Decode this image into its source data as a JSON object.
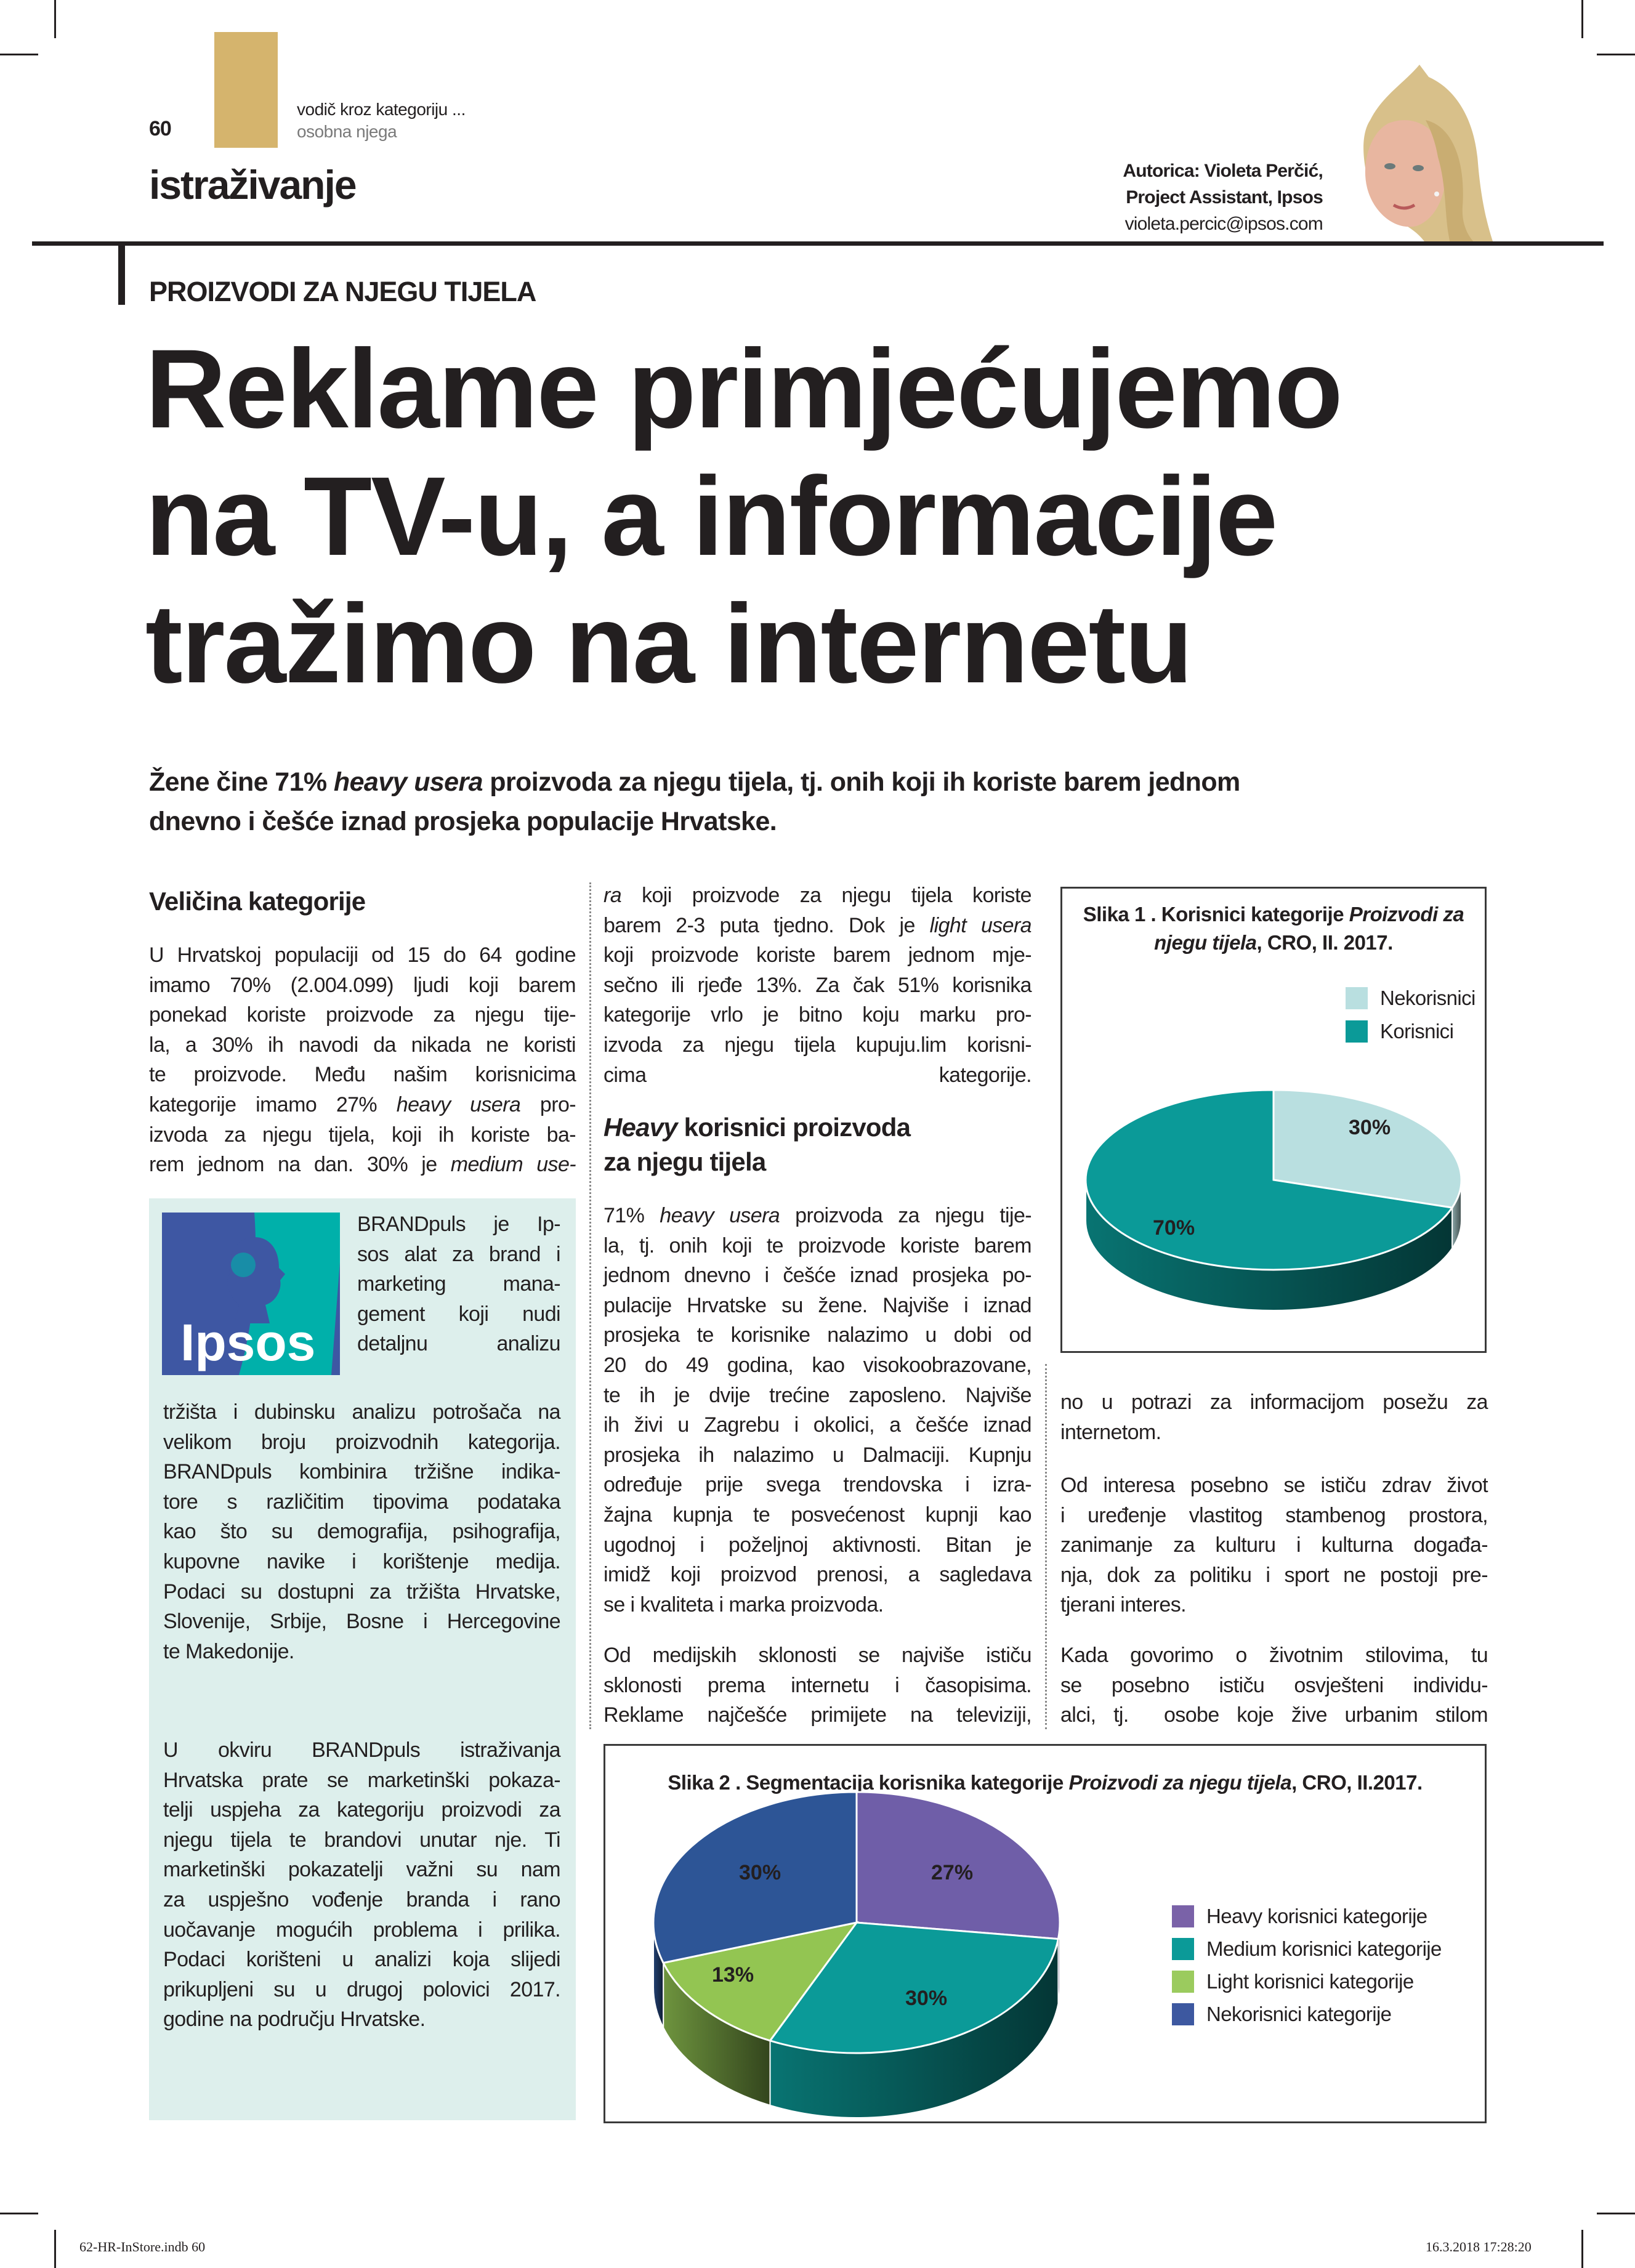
{
  "header": {
    "page_number": "60",
    "kicker": "vodič kroz kategoriju ...",
    "kicker_sub": "osobna njega",
    "section": "istraživanje",
    "author_line1": "Autorica: Violeta Perčić,",
    "author_line2": "Project Assistant, Ipsos",
    "author_email": "violeta.percic@ipsos.com"
  },
  "article": {
    "rubric": "PROIZVODI ZA NJEGU TIJELA",
    "headline": [
      "Reklame primjećujemo",
      "na TV-u, a informacije",
      "tražimo na internetu"
    ],
    "lead": {
      "l1_a": "Žene čine 71% ",
      "l1_i": "heavy usera",
      "l1_b": " proizvoda za njegu tijela, tj. onih koji ih koriste barem jednom",
      "l2": "dnevno i češće iznad prosjeka populacije Hrvatske."
    },
    "col1": {
      "heading": "Veličina kategorije",
      "p1": [
        "U Hrvatskoj populaciji od 15 do 64 godine",
        "imamo 70% (2.004.099) ljudi koji barem",
        "ponekad koriste proizvode za njegu tije-",
        "la, a 30% ih navodi da nikada ne koristi",
        "te proizvode. Među našim korisnicima",
        [
          "kategorije imamo 27% ",
          {
            "i": "heavy usera"
          },
          " pro-"
        ],
        "izvoda za njegu tijela, koji ih koriste ba-",
        [
          "rem jednom na dan. 30% je ",
          {
            "i": "medium use-"
          }
        ]
      ]
    },
    "box": {
      "logo_text": "Ipsos",
      "p1_narrow": [
        "BRANDpuls je Ip-",
        "sos alat za brand i",
        "marketing mana-",
        "gement koji nudi",
        "detaljnu analizu"
      ],
      "p1": [
        "tržišta i dubinsku analizu potrošača na",
        "velikom broju proizvodnih kategorija.",
        "BRANDpuls kombinira tržišne indika-",
        "tore s različitim tipovima podataka",
        "kao što su demografija, psihografija,",
        "kupovne navike i korištenje medija.",
        "Podaci su dostupni za tržišta Hrvatske,",
        "Slovenije, Srbije, Bosne i Hercegovine",
        "te Makedonije."
      ],
      "p2": [
        "U okviru BRANDpuls istraživanja",
        "Hrvatska prate se marketinški pokaza-",
        "telji uspjeha za kategoriju proizvodi za",
        "njegu tijela te brandovi unutar nje. Ti",
        "marketinški pokazatelji važni su nam",
        "za uspješno vođenje branda i rano",
        "uočavanje mogućih problema i prilika.",
        "Podaci korišteni u analizi koja slijedi",
        "prikupljeni su u drugoj polovici 2017.",
        "godine na području Hrvatske."
      ]
    },
    "col2": {
      "p1": [
        [
          {
            "i": "ra"
          },
          " koji proizvode za njegu tijela koriste"
        ],
        [
          "barem 2-3 puta tjedno. Dok je ",
          {
            "i": "light usera"
          }
        ],
        "koji proizvode koriste barem jednom mje-",
        "sečno ili rjeđe 13%. Za čak 51% korisnika",
        "kategorije vrlo je bitno koju marku pro-",
        "izvoda za njegu tijela kupuju.lim korisni-",
        "cima kategorije."
      ],
      "heading_i": "Heavy",
      "heading_a": " korisnici proizvoda",
      "heading_b": "za njegu tijela",
      "p2": [
        [
          "71% ",
          {
            "i": "heavy usera"
          },
          " proizvoda za njegu tije-"
        ],
        "la, tj. onih koji te proizvode koriste barem",
        "jednom dnevno i češće iznad prosjeka po-",
        "pulacije Hrvatske su žene. Najviše i iznad",
        "prosjeka te korisnike nalazimo u dobi od",
        "20 do 49 godina, kao visokoobrazovane,",
        "te ih je dvije trećine zaposleno. Najviše",
        "ih živi u Zagrebu i okolici, a češće iznad",
        "prosjeka ih nalazimo u Dalmaciji. Kupnju",
        "određuje prije svega trendovska i izra-",
        "žajna kupnja te posvećenost kupnji kao",
        "ugodnoj i poželjnoj aktivnosti. Bitan je",
        "imidž koji proizvod prenosi, a sagledava",
        "se i kvaliteta i marka proizvoda."
      ],
      "p3": [
        "Od medijskih sklonosti se najviše ističu",
        "sklonosti prema internetu i časopisima.",
        "Reklame najčešće primijete na televiziji,"
      ]
    },
    "col3": {
      "p1": [
        "no u potrazi za informacijom posežu za",
        "internetom."
      ],
      "p2": [
        "Od interesa posebno se ističu zdrav život",
        "i uređenje vlastitog stambenog prostora,",
        "zanimanje za kulturu i kulturna događa-",
        "nja, dok za politiku i sport ne postoji pre-",
        "tjerani interes."
      ],
      "p3": [
        "Kada govorimo o životnim stilovima, tu",
        "se posebno ističu osvješteni individu-",
        "alci, tj.  osobe koje žive urbanim stilom"
      ]
    }
  },
  "chart_data": [
    {
      "type": "pie",
      "style": "3d",
      "title_a": "Slika 1 . Korisnici kategorije ",
      "title_i": "Proizvodi za njegu tijela",
      "title_b": ", CRO, II. 2017.",
      "categories": [
        "Nekorisnici",
        "Korisnici"
      ],
      "values": [
        30,
        70
      ],
      "labels": [
        "30%",
        "70%"
      ],
      "colors": [
        "#b9dfe0",
        "#0b9a98"
      ],
      "legend": "top-right"
    },
    {
      "type": "pie",
      "style": "3d",
      "title_a": "Slika 2 . Segmentacija korisnika kategorije ",
      "title_i": "Proizvodi za njegu tijela",
      "title_b": ", CRO, II.2017.",
      "categories": [
        "Heavy korisnici kategorije",
        "Medium korisnici kategorije",
        "Light korisnici kategorije",
        "Nekorisnici kategorije"
      ],
      "values": [
        27,
        30,
        13,
        30
      ],
      "labels": [
        "27%",
        "30%",
        "13%",
        "30%"
      ],
      "colors": [
        "#6f5ea8",
        "#0b9a98",
        "#93c552",
        "#2d5596"
      ],
      "legend": "right"
    }
  ],
  "footer": {
    "left": "62-HR-InStore.indb   60",
    "right": "16.3.2018   17:28:20"
  },
  "colors": {
    "accent_gold": "#d5b46d",
    "box_bg": "#ddefec",
    "ipsos_blue": "#3e57a3",
    "ipsos_teal": "#00b0aa"
  }
}
